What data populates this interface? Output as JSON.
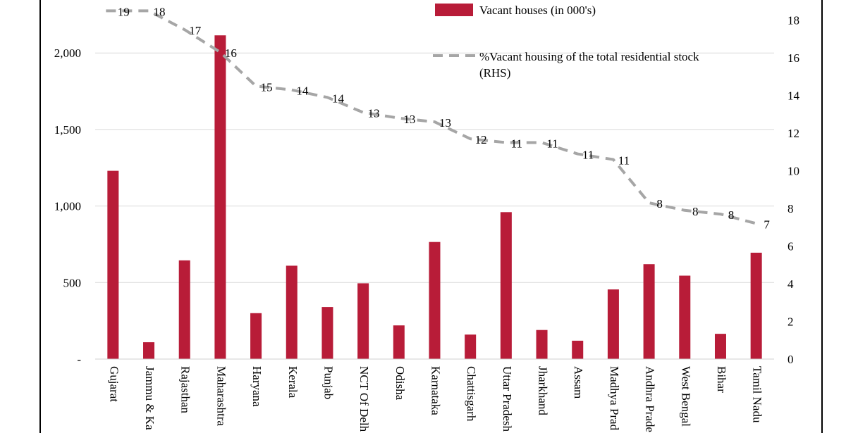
{
  "chart_data": {
    "type": "bar",
    "categories": [
      "Gujarat",
      "Jammu & Ka",
      "Rajasthan",
      "Maharashtra",
      "Haryana",
      "Kerala",
      "Punjab",
      "NCT Of Delh",
      "Odisha",
      "Karnataka",
      "Chattisgarh",
      "Uttar Pradesh",
      "Jharkhand",
      "Assam",
      "Madhya Prad",
      "Andhra Prade",
      "West Bengal",
      "Bihar",
      "Tamil Nadu"
    ],
    "series": [
      {
        "name": "Vacant houses (in 000's)",
        "type": "bar",
        "axis": "left",
        "color": "#b81c38",
        "values": [
          1230,
          110,
          645,
          2115,
          300,
          610,
          340,
          495,
          220,
          765,
          160,
          960,
          190,
          120,
          455,
          620,
          545,
          165,
          695
        ]
      },
      {
        "name": "%Vacant housing of the total residential stock (RHS)",
        "type": "line",
        "axis": "right",
        "style": "dashed",
        "color": "#a6a6a6",
        "values": [
          18.5,
          18.5,
          17.5,
          16.3,
          14.5,
          14.3,
          13.9,
          13.1,
          12.8,
          12.6,
          11.7,
          11.5,
          11.5,
          10.9,
          10.6,
          8.3,
          7.9,
          7.7,
          7.2
        ],
        "data_labels": [
          "19",
          "18",
          "17",
          "16",
          "15",
          "14",
          "14",
          "13",
          "13",
          "13",
          "12",
          "11",
          "11",
          "11",
          "11",
          "8",
          "8",
          "8",
          "7"
        ]
      }
    ],
    "left_axis": {
      "range": [
        0,
        2300
      ],
      "ticks": [
        0,
        500,
        1000,
        1500,
        2000
      ],
      "tick_labels": [
        "-",
        "500",
        "1,000",
        "1,500",
        "2,000"
      ]
    },
    "right_axis": {
      "range": [
        0,
        18.7
      ],
      "ticks": [
        0,
        2,
        4,
        6,
        8,
        10,
        12,
        14,
        16,
        18
      ],
      "tick_labels": [
        "0",
        "2",
        "4",
        "6",
        "8",
        "10",
        "12",
        "14",
        "16",
        "18"
      ]
    },
    "grid": true,
    "legend_position": "top-right"
  }
}
